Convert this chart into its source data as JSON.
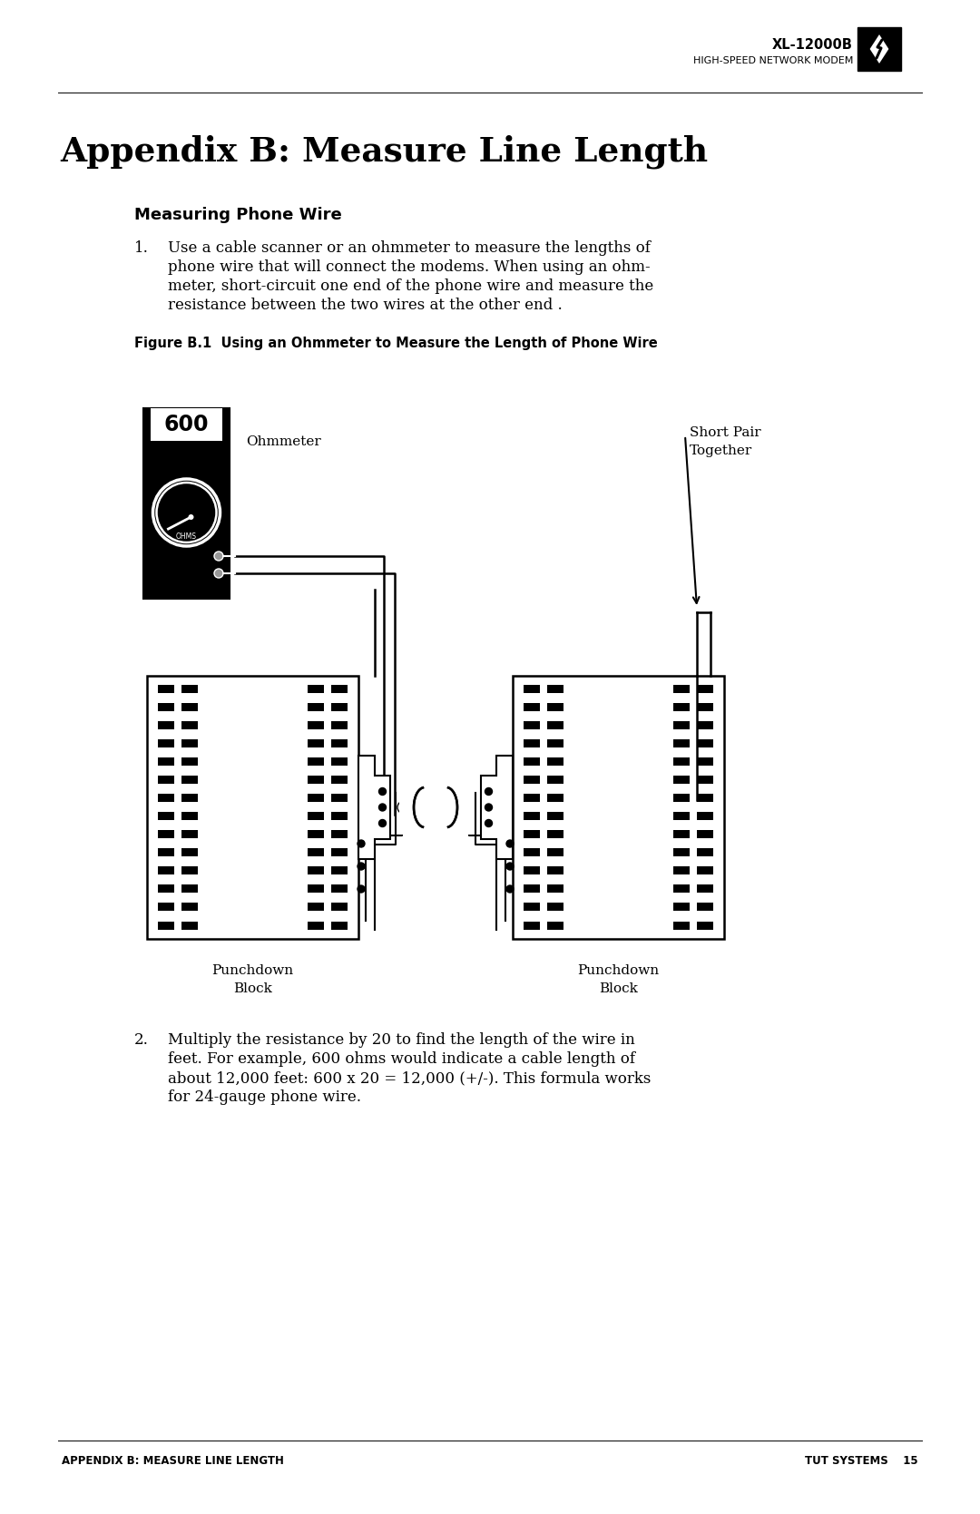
{
  "page_bg": "#ffffff",
  "header_model": "XL-12000B",
  "header_subtitle": "HIGH-SPEED NETWORK MODEM",
  "title": "Appendix B: Measure Line Length",
  "section_title": "Measuring Phone Wire",
  "step1_label": "1.",
  "step1_lines": [
    "Use a cable scanner or an ohmmeter to measure the lengths of",
    "phone wire that will connect the modems. When using an ohm-",
    "meter, short-circuit one end of the phone wire and measure the",
    "resistance between the two wires at the other end ."
  ],
  "figure_caption": "Figure B.1  Using an Ohmmeter to Measure the Length of Phone Wire",
  "step2_label": "2.",
  "step2_lines": [
    "Multiply the resistance by 20 to find the length of the wire in",
    "feet. For example, 600 ohms would indicate a cable length of",
    "about 12,000 feet: 600 x 20 = 12,000 (+/-). This formula works",
    "for 24-gauge phone wire."
  ],
  "footer_left": "APPENDIX B: MEASURE LINE LENGTH",
  "footer_right": "TUT SYSTEMS    15",
  "text_color": "#000000"
}
